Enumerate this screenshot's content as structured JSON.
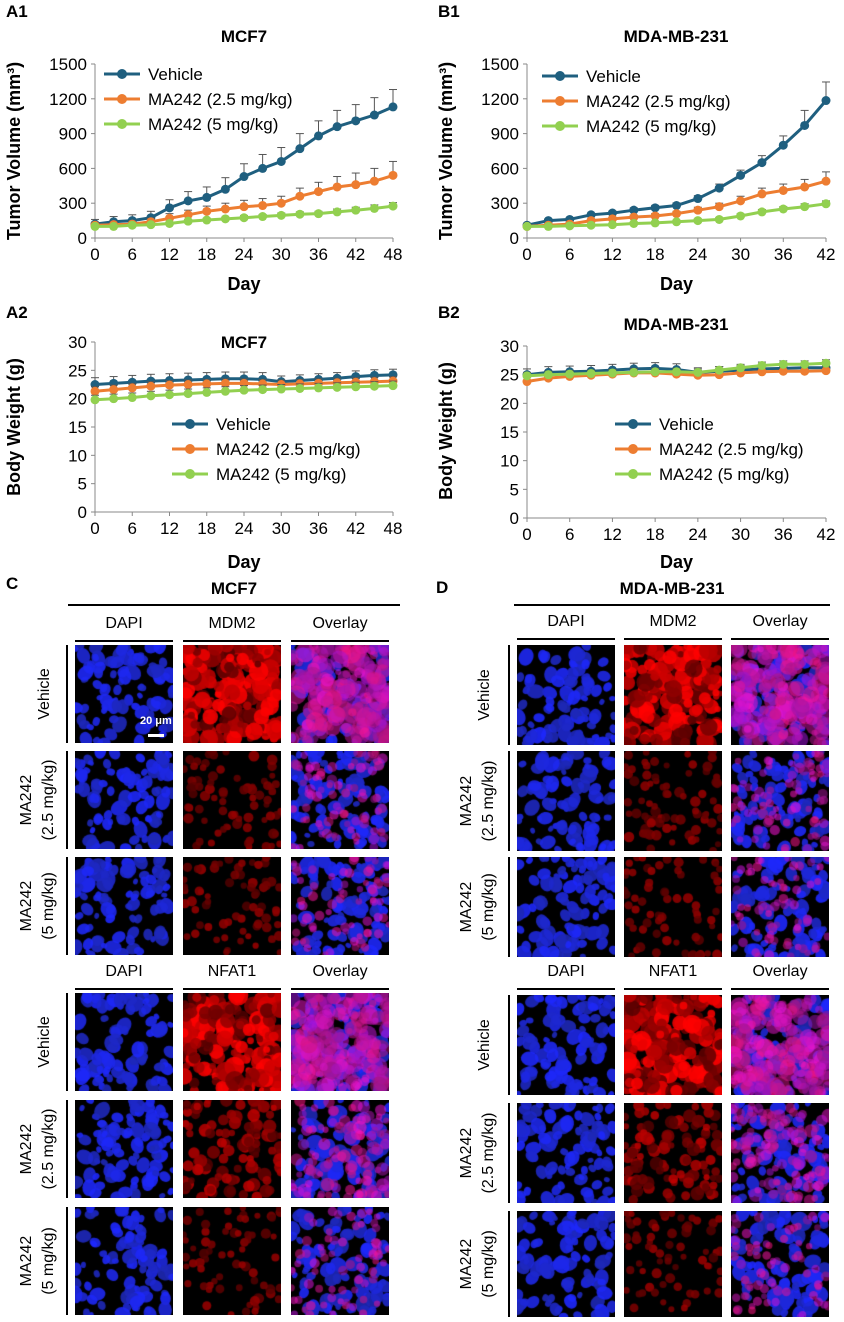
{
  "colors": {
    "vehicle": "#1f5f7f",
    "ma242_low": "#ed7d31",
    "ma242_high": "#92d050"
  },
  "legend": [
    "Vehicle",
    "MA242 (2.5 mg/kg)",
    "MA242 (5 mg/kg)"
  ],
  "chart_data": [
    {
      "id": "A1",
      "type": "line",
      "title": "MCF7",
      "xlabel": "Day",
      "ylabel": "Tumor Volume (mm³)",
      "xlim": [
        0,
        48
      ],
      "ylim": [
        0,
        1500
      ],
      "xticks": [
        0,
        6,
        12,
        18,
        24,
        30,
        36,
        42,
        48
      ],
      "yticks": [
        0,
        300,
        600,
        900,
        1200,
        1500
      ],
      "x": [
        0,
        3,
        6,
        9,
        12,
        15,
        18,
        21,
        24,
        27,
        30,
        33,
        36,
        39,
        42,
        45,
        48
      ],
      "series": [
        {
          "name": "Vehicle",
          "values": [
            120,
            140,
            150,
            175,
            260,
            320,
            350,
            420,
            530,
            600,
            660,
            770,
            880,
            960,
            1010,
            1060,
            1130
          ],
          "errors": [
            40,
            45,
            50,
            55,
            70,
            80,
            90,
            100,
            110,
            120,
            120,
            130,
            130,
            140,
            140,
            150,
            150
          ]
        },
        {
          "name": "MA242 (2.5 mg/kg)",
          "values": [
            110,
            115,
            120,
            140,
            170,
            200,
            230,
            250,
            270,
            280,
            300,
            360,
            400,
            440,
            460,
            490,
            540
          ],
          "errors": [
            20,
            25,
            25,
            30,
            40,
            40,
            45,
            50,
            55,
            60,
            60,
            70,
            80,
            90,
            100,
            110,
            120
          ]
        },
        {
          "name": "MA242 (5 mg/kg)",
          "values": [
            100,
            100,
            110,
            115,
            125,
            145,
            155,
            165,
            175,
            185,
            195,
            205,
            210,
            225,
            240,
            255,
            275
          ],
          "errors": [
            10,
            10,
            10,
            12,
            12,
            15,
            15,
            15,
            18,
            18,
            20,
            20,
            20,
            25,
            25,
            30,
            30
          ]
        }
      ],
      "legend_position": "top-left"
    },
    {
      "id": "B1",
      "type": "line",
      "title": "MDA-MB-231",
      "xlabel": "Day",
      "ylabel": "Tumor Volume (mm³)",
      "xlim": [
        0,
        42
      ],
      "ylim": [
        0,
        1500
      ],
      "xticks": [
        0,
        6,
        12,
        18,
        24,
        30,
        36,
        42
      ],
      "yticks": [
        0,
        300,
        600,
        900,
        1200,
        1500
      ],
      "x": [
        0,
        3,
        6,
        9,
        12,
        15,
        18,
        21,
        24,
        27,
        30,
        33,
        36,
        39,
        42
      ],
      "series": [
        {
          "name": "Vehicle",
          "values": [
            110,
            150,
            160,
            200,
            215,
            240,
            260,
            280,
            340,
            430,
            540,
            650,
            800,
            970,
            1185
          ],
          "errors": [
            15,
            15,
            15,
            15,
            18,
            20,
            20,
            22,
            25,
            35,
            45,
            60,
            80,
            130,
            160
          ]
        },
        {
          "name": "MA242 (2.5 mg/kg)",
          "values": [
            100,
            110,
            120,
            150,
            165,
            180,
            190,
            210,
            240,
            270,
            320,
            380,
            410,
            440,
            490
          ],
          "errors": [
            15,
            15,
            15,
            15,
            15,
            18,
            20,
            20,
            25,
            30,
            40,
            50,
            55,
            65,
            80
          ]
        },
        {
          "name": "MA242 (5 mg/kg)",
          "values": [
            100,
            100,
            105,
            110,
            115,
            125,
            130,
            140,
            150,
            160,
            190,
            225,
            250,
            270,
            295
          ],
          "errors": [
            10,
            10,
            10,
            10,
            10,
            12,
            12,
            12,
            15,
            15,
            18,
            20,
            20,
            25,
            25
          ]
        }
      ],
      "legend_position": "top-left"
    },
    {
      "id": "A2",
      "type": "line",
      "title": "MCF7",
      "xlabel": "Day",
      "ylabel": "Body Weight (g)",
      "xlim": [
        0,
        48
      ],
      "ylim": [
        0,
        30
      ],
      "xticks": [
        0,
        6,
        12,
        18,
        24,
        30,
        36,
        42,
        48
      ],
      "yticks": [
        0,
        5,
        10,
        15,
        20,
        25,
        30
      ],
      "x": [
        0,
        3,
        6,
        9,
        12,
        15,
        18,
        21,
        24,
        27,
        30,
        33,
        36,
        39,
        42,
        45,
        48
      ],
      "series": [
        {
          "name": "Vehicle",
          "values": [
            22.5,
            22.7,
            22.9,
            23.1,
            23.2,
            23.3,
            23.4,
            23.5,
            23.5,
            23.4,
            23.0,
            23.2,
            23.4,
            23.6,
            23.9,
            24.1,
            24.2
          ],
          "errors": [
            1.2,
            1.2,
            1.2,
            1.2,
            1.2,
            1.2,
            1.2,
            1.2,
            1.2,
            1.2,
            1.0,
            1.0,
            1.0,
            1.0,
            1.0,
            1.0,
            1.0
          ]
        },
        {
          "name": "MA242 (2.5 mg/kg)",
          "values": [
            21.3,
            21.6,
            21.9,
            22.2,
            22.4,
            22.5,
            22.6,
            22.7,
            22.7,
            22.6,
            22.5,
            22.6,
            22.7,
            22.8,
            22.9,
            23.0,
            23.1
          ],
          "errors": [
            0.8,
            0.8,
            0.8,
            0.8,
            0.8,
            0.8,
            0.8,
            0.8,
            0.8,
            0.8,
            0.8,
            0.8,
            0.8,
            0.8,
            0.8,
            0.8,
            0.8
          ]
        },
        {
          "name": "MA242 (5 mg/kg)",
          "values": [
            19.8,
            20.0,
            20.2,
            20.5,
            20.7,
            20.9,
            21.1,
            21.3,
            21.5,
            21.6,
            21.7,
            21.8,
            21.9,
            22.0,
            22.1,
            22.2,
            22.3
          ],
          "errors": [
            0.8,
            0.8,
            0.8,
            0.8,
            0.8,
            0.8,
            0.8,
            0.8,
            0.8,
            0.8,
            0.8,
            0.8,
            0.8,
            0.8,
            0.8,
            0.8,
            0.8
          ]
        }
      ],
      "legend_position": "bottom-right"
    },
    {
      "id": "B2",
      "type": "line",
      "title": "MDA-MB-231",
      "xlabel": "Day",
      "ylabel": "Body Weight (g)",
      "xlim": [
        0,
        42
      ],
      "ylim": [
        0,
        30
      ],
      "xticks": [
        0,
        6,
        12,
        18,
        24,
        30,
        36,
        42
      ],
      "yticks": [
        0,
        5,
        10,
        15,
        20,
        25,
        30
      ],
      "x": [
        0,
        3,
        6,
        9,
        12,
        15,
        18,
        21,
        24,
        27,
        30,
        33,
        36,
        39,
        42
      ],
      "series": [
        {
          "name": "Vehicle",
          "values": [
            25.0,
            25.4,
            25.5,
            25.6,
            25.8,
            26.0,
            26.1,
            25.9,
            25.4,
            25.6,
            25.8,
            26.0,
            26.1,
            26.2,
            26.2
          ],
          "errors": [
            1.0,
            1.0,
            1.0,
            1.0,
            1.0,
            1.0,
            1.0,
            1.0,
            0.8,
            0.8,
            0.8,
            0.8,
            0.8,
            0.8,
            0.8
          ]
        },
        {
          "name": "MA242 (2.5 mg/kg)",
          "values": [
            23.8,
            24.4,
            24.7,
            24.9,
            25.1,
            25.3,
            25.3,
            25.1,
            24.9,
            25.0,
            25.3,
            25.5,
            25.6,
            25.6,
            25.7
          ],
          "errors": [
            0.8,
            0.8,
            0.8,
            0.8,
            0.8,
            0.8,
            0.8,
            0.8,
            0.8,
            0.8,
            0.8,
            0.8,
            0.8,
            0.8,
            0.8
          ]
        },
        {
          "name": "MA242 (5 mg/kg)",
          "values": [
            24.8,
            25.0,
            25.1,
            25.2,
            25.3,
            25.4,
            25.5,
            25.5,
            25.4,
            25.8,
            26.2,
            26.6,
            26.8,
            26.8,
            27.0
          ],
          "errors": [
            0.6,
            0.6,
            0.6,
            0.6,
            0.6,
            0.6,
            0.6,
            0.6,
            0.6,
            0.6,
            0.6,
            0.6,
            0.6,
            0.6,
            0.6
          ]
        }
      ],
      "legend_position": "bottom-right"
    }
  ],
  "panels": {
    "A1": "A1",
    "B1": "B1",
    "A2": "A2",
    "B2": "B2",
    "C": "C",
    "D": "D"
  },
  "micrographs": {
    "C": {
      "title": "MCF7",
      "cols_top": [
        "DAPI",
        "MDM2",
        "Overlay"
      ],
      "cols_bottom": [
        "DAPI",
        "NFAT1",
        "Overlay"
      ],
      "rows": [
        "Vehicle",
        "MA242\n(2.5 mg/kg)",
        "MA242\n(5 mg/kg)"
      ],
      "scale_bar": "20 μm"
    },
    "D": {
      "title": "MDA-MB-231",
      "cols_top": [
        "DAPI",
        "MDM2",
        "Overlay"
      ],
      "cols_bottom": [
        "DAPI",
        "NFAT1",
        "Overlay"
      ],
      "rows": [
        "Vehicle",
        "MA242\n(2.5 mg/kg)",
        "MA242\n(5 mg/kg)"
      ]
    }
  }
}
